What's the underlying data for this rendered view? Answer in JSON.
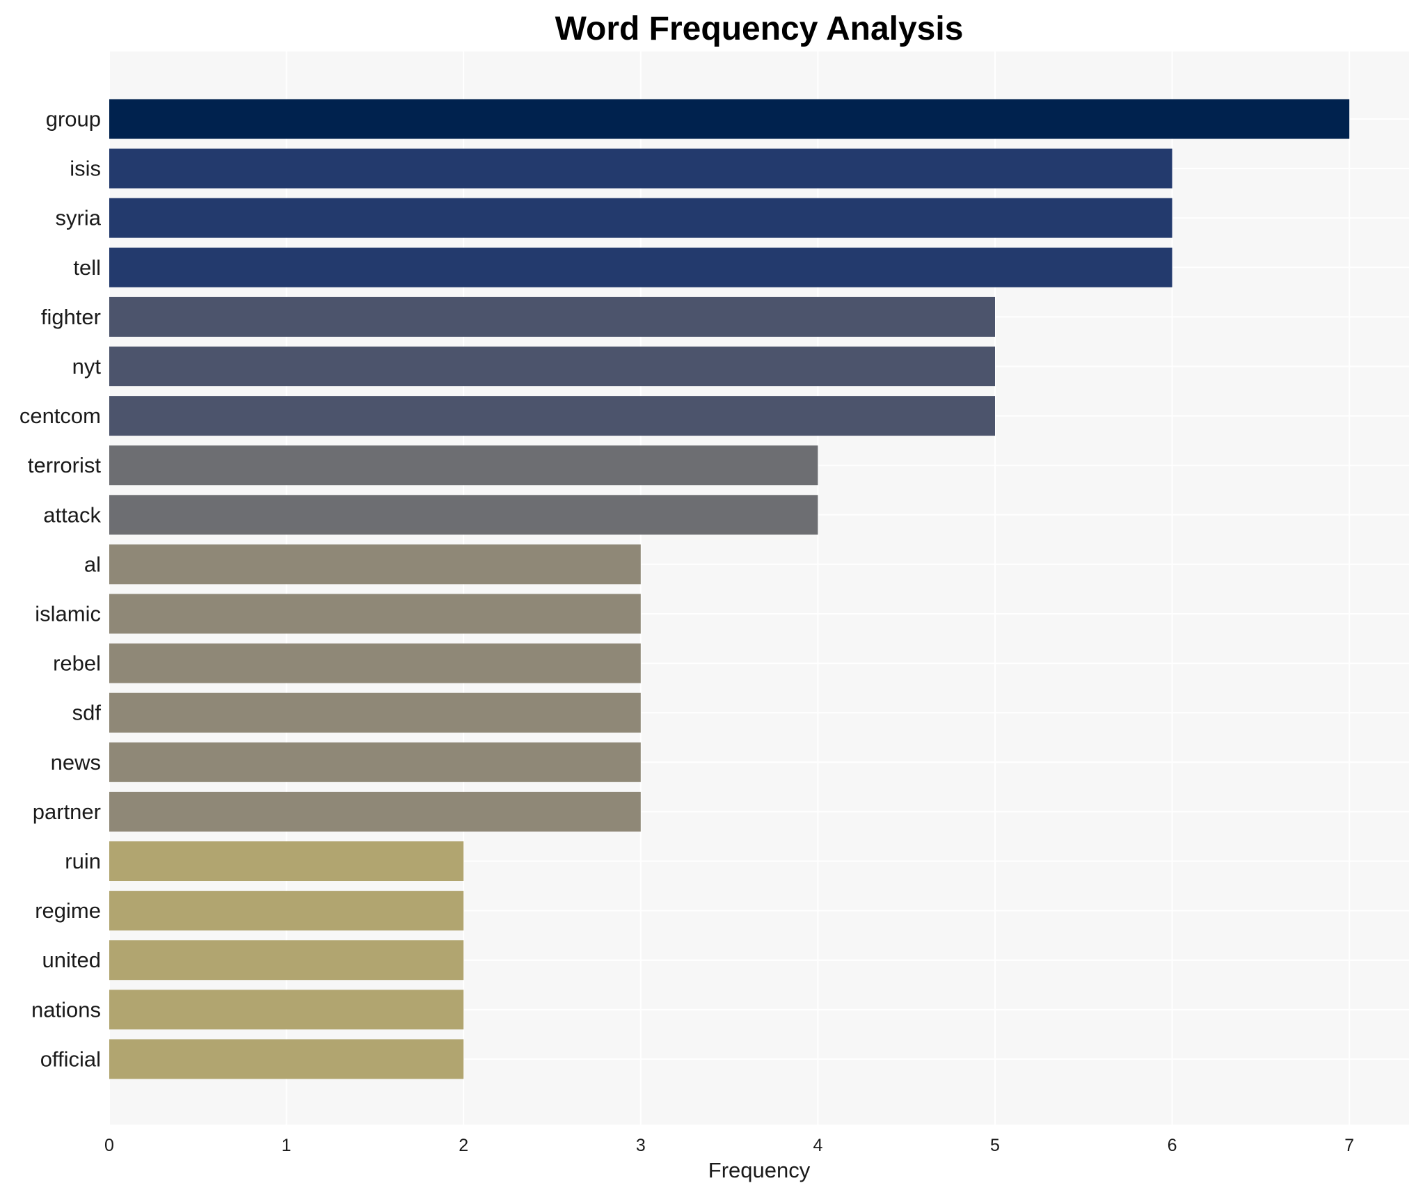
{
  "chart_data": {
    "type": "bar",
    "orientation": "horizontal",
    "title": "Word Frequency Analysis",
    "xlabel": "Frequency",
    "ylabel": "",
    "xlim": [
      0,
      7.35
    ],
    "xticks": [
      0,
      1,
      2,
      3,
      4,
      5,
      6,
      7
    ],
    "grid": true,
    "legend": "none",
    "categories": [
      "group",
      "isis",
      "syria",
      "tell",
      "fighter",
      "nyt",
      "centcom",
      "terrorist",
      "attack",
      "al",
      "islamic",
      "rebel",
      "sdf",
      "news",
      "partner",
      "ruin",
      "regime",
      "united",
      "nations",
      "official"
    ],
    "values": [
      7,
      6,
      6,
      6,
      5,
      5,
      5,
      4,
      4,
      3,
      3,
      3,
      3,
      3,
      3,
      2,
      2,
      2,
      2,
      2
    ],
    "colors_by_value": {
      "7": "#00224e",
      "6": "#233a6d",
      "5": "#4c546c",
      "4": "#6d6e72",
      "3": "#8f8877",
      "2": "#b1a570"
    },
    "plot_background": "#f7f7f7",
    "grid_color": "#ffffff"
  }
}
